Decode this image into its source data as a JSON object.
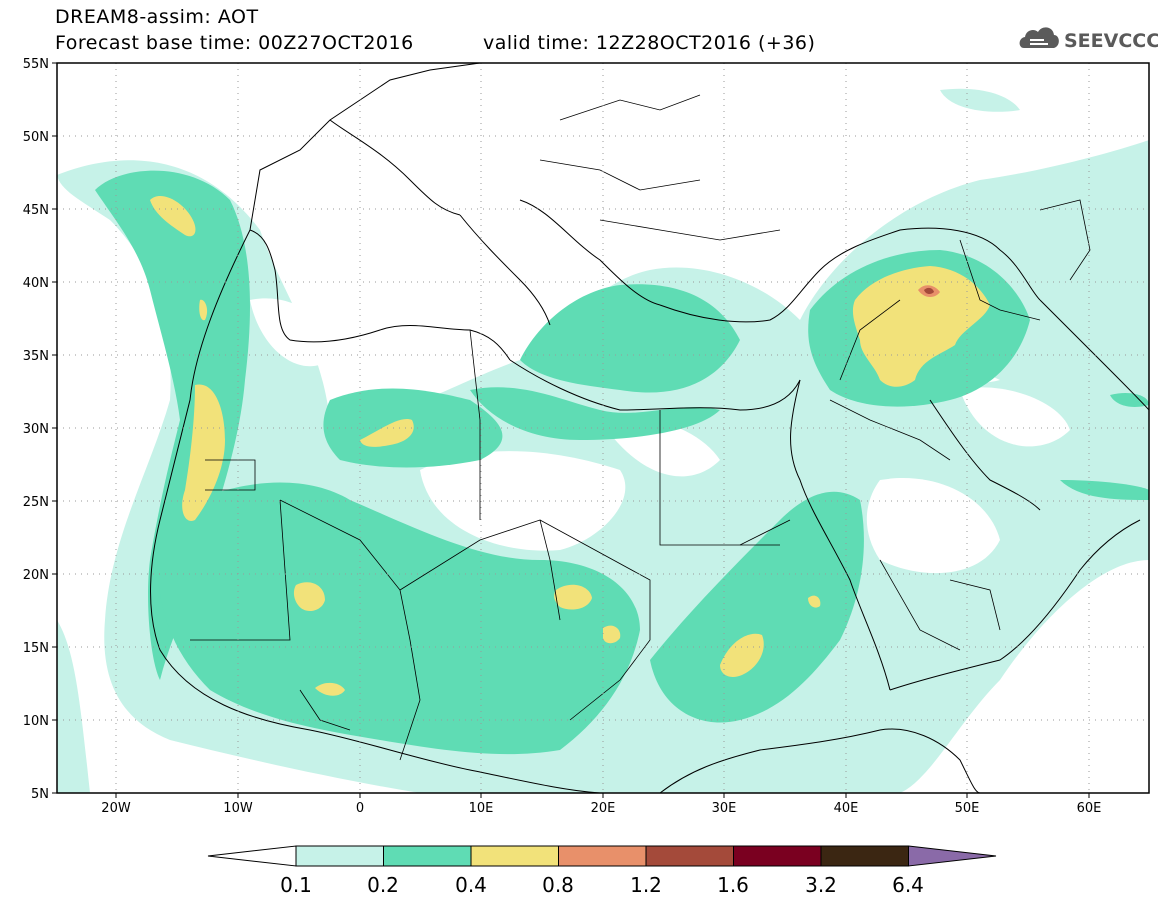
{
  "header": {
    "title": "DREAM8-assim: AOT",
    "base_time": "Forecast base time: 00Z27OCT2016",
    "valid_time": "valid time: 12Z28OCT2016 (+36)"
  },
  "logo": {
    "text": "SEEVCCC",
    "icon": "cloud-icon",
    "color": "#555555"
  },
  "axes": {
    "lon_labels": [
      "20W",
      "10W",
      "0",
      "10E",
      "20E",
      "30E",
      "40E",
      "50E",
      "60E"
    ],
    "lat_labels": [
      "55N",
      "50N",
      "45N",
      "40N",
      "35N",
      "30N",
      "25N",
      "20N",
      "15N",
      "10N",
      "5N"
    ]
  },
  "colorbar": {
    "levels": [
      "0.1",
      "0.2",
      "0.4",
      "0.8",
      "1.2",
      "1.6",
      "3.2",
      "6.4"
    ],
    "colors": [
      "#ffffff",
      "#c6f2e8",
      "#5fdcb4",
      "#f2e27a",
      "#e8906a",
      "#a44a3a",
      "#7a0020",
      "#3b2612",
      "#8a6aa8"
    ]
  },
  "palette": {
    "land": "#ffffff",
    "coast": "#000000",
    "grid": "#9a9a9a"
  }
}
